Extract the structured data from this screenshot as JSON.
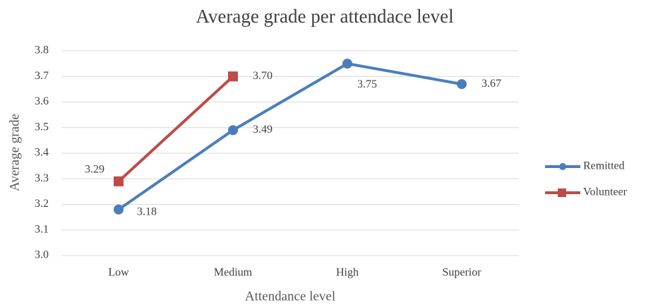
{
  "chart_data": {
    "type": "line",
    "title": "Average grade per attendace level",
    "x_label": "Attendance level",
    "y_label": "Average grade",
    "categories": [
      "Low",
      "Medium",
      "High",
      "Superior"
    ],
    "series": [
      {
        "name": "Remitted",
        "color": "#4a7ebb",
        "marker": "circle",
        "values": [
          3.18,
          3.49,
          3.75,
          3.67
        ],
        "value_labels": [
          "3.18",
          "3.49",
          "3.75",
          "3.67"
        ]
      },
      {
        "name": "Volunteer",
        "color": "#be4b48",
        "marker": "square",
        "values": [
          3.29,
          3.7,
          null,
          null
        ],
        "value_labels": [
          "3.29",
          "3.70",
          null,
          null
        ]
      }
    ],
    "ylim": [
      3.0,
      3.8
    ],
    "yticks": [
      {
        "value": 3.0,
        "label": "3.0"
      },
      3.1,
      3.2,
      3.3,
      3.4,
      3.5,
      3.6,
      3.7,
      3.8
    ],
    "grid": true,
    "legend": "right"
  }
}
